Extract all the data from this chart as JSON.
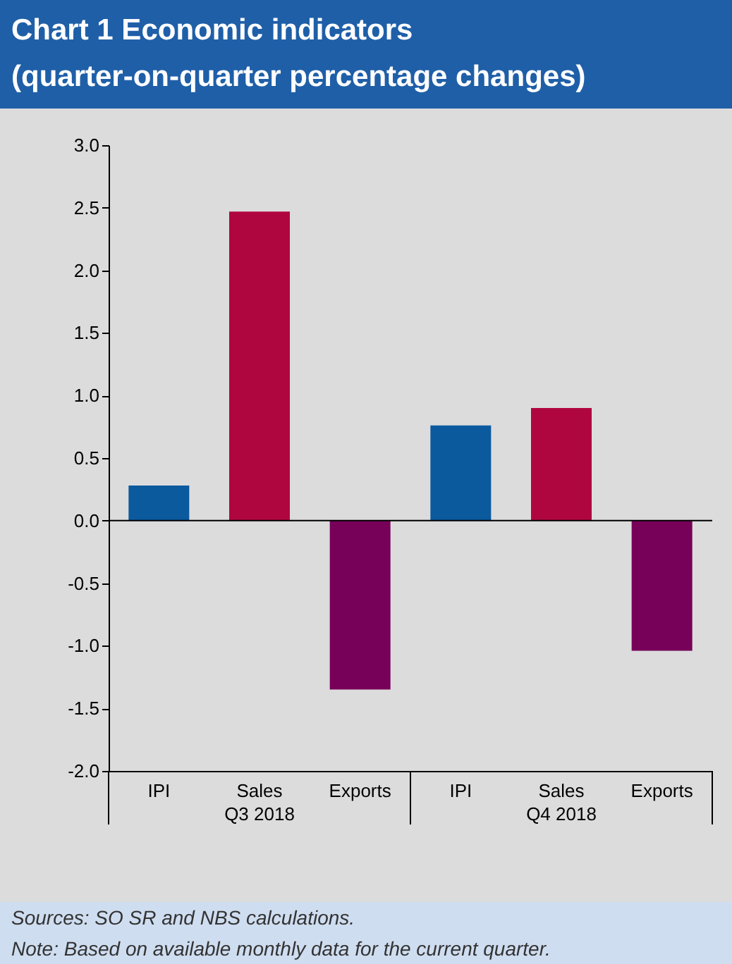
{
  "chart_data": {
    "type": "bar",
    "title": "Chart 1 Economic indicators",
    "subtitle": "(quarter-on-quarter percentage changes)",
    "categories": [
      "IPI",
      "Sales",
      "Exports",
      "IPI",
      "Sales",
      "Exports"
    ],
    "values": [
      0.28,
      2.47,
      -1.35,
      0.76,
      0.9,
      -1.04
    ],
    "colors": [
      "#0b5a9e",
      "#b0063f",
      "#770059",
      "#0b5a9e",
      "#b0063f",
      "#770059"
    ],
    "ylim": [
      -2,
      3
    ],
    "yticks": [
      {
        "value": -2,
        "label": "-2.0"
      },
      {
        "value": -1.5,
        "label": "-1.5"
      },
      {
        "value": -1,
        "label": "-1.0"
      },
      {
        "value": -0.5,
        "label": "-0.5"
      },
      {
        "value": 0,
        "label": "0.0"
      },
      {
        "value": 0.5,
        "label": "0.5"
      },
      {
        "value": 1,
        "label": "1.0"
      },
      {
        "value": 1.5,
        "label": "1.5"
      },
      {
        "value": 2,
        "label": "2.0"
      },
      {
        "value": 2.5,
        "label": "2.5"
      },
      {
        "value": 3,
        "label": "3.0"
      }
    ],
    "ref_lines": [
      {
        "axis": "y",
        "value": 0,
        "color": "#000000"
      }
    ],
    "annotations": [
      "Q3 2018",
      "Q4 2018",
      "Sources: SO SR and NBS calculations.",
      "Note: Based on available monthly data for the current quarter."
    ]
  }
}
